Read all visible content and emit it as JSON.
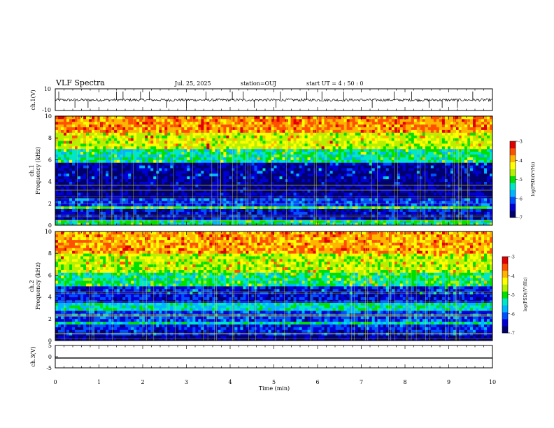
{
  "header": {
    "title": "VLF Spectra",
    "date": "Jul. 25, 2025",
    "station": "station=OUJ",
    "start_ut": "start UT =  4 : 50 : 0"
  },
  "colors": {
    "colormap": [
      "#00006e",
      "#0000d4",
      "#0050ff",
      "#00b4ff",
      "#00e6c8",
      "#00e000",
      "#b4f000",
      "#ffff00",
      "#ffb400",
      "#ff5000",
      "#e00000"
    ],
    "trace": "#000000",
    "axis": "#000000"
  },
  "chart_data": [
    {
      "type": "line",
      "panel": "ch1-waveform",
      "ylabel": "ch.1(V)",
      "ylim": [
        -10,
        10
      ],
      "yticks": [
        "10",
        "-10"
      ],
      "x": [
        0,
        10
      ],
      "mean_level": -0.3,
      "noise_amplitude": 1.2,
      "spikes_min": [
        0.08,
        0.45,
        0.75,
        1.4,
        1.55,
        1.95,
        2.15,
        2.55,
        3.0,
        3.45,
        4.05,
        4.3,
        4.55,
        5.05,
        5.15,
        5.75,
        6.1,
        6.6,
        7.25,
        7.75,
        8.15,
        8.55,
        8.85,
        9.2,
        9.55
      ]
    },
    {
      "type": "heatmap",
      "panel": "ch1-spectrogram",
      "ylabel_lines": [
        "ch.1",
        "Frequency (kHz)"
      ],
      "ylim": [
        0,
        10
      ],
      "yticks": [
        "0",
        "2",
        "4",
        "6",
        "8",
        "10"
      ],
      "xlim": [
        0,
        10
      ],
      "colorbar": {
        "label": "log(PSD)(V²/Hz)",
        "range": [
          -7,
          -3
        ],
        "ticks": [
          "-3",
          "-4",
          "-5",
          "-6",
          "-7"
        ]
      },
      "bands_khz": [
        {
          "from": 0.0,
          "to": 0.5,
          "log_psd": -5.2
        },
        {
          "from": 0.5,
          "to": 1.4,
          "log_psd": -6.5
        },
        {
          "from": 1.4,
          "to": 1.7,
          "log_psd": -5.1
        },
        {
          "from": 1.7,
          "to": 2.4,
          "log_psd": -6.2
        },
        {
          "from": 2.4,
          "to": 5.8,
          "log_psd": -6.7
        },
        {
          "from": 5.8,
          "to": 7.0,
          "log_psd": -5.3
        },
        {
          "from": 7.0,
          "to": 8.5,
          "log_psd": -4.5
        },
        {
          "from": 8.5,
          "to": 10.0,
          "log_psd": -3.8
        }
      ]
    },
    {
      "type": "heatmap",
      "panel": "ch2-spectrogram",
      "ylabel_lines": [
        "ch.2",
        "Frequency (kHz)"
      ],
      "ylim": [
        0,
        10
      ],
      "yticks": [
        "0",
        "2",
        "4",
        "6",
        "8",
        "10"
      ],
      "xlim": [
        0,
        10
      ],
      "colorbar": {
        "label": "log(PSD)(V²/Hz)",
        "range": [
          -7,
          -3
        ],
        "ticks": [
          "-3",
          "-4",
          "-5",
          "-6",
          "-7"
        ]
      },
      "bands_khz": [
        {
          "from": 0.0,
          "to": 0.5,
          "log_psd": -6.8
        },
        {
          "from": 0.5,
          "to": 1.4,
          "log_psd": -6.3
        },
        {
          "from": 1.4,
          "to": 1.8,
          "log_psd": -5.3
        },
        {
          "from": 1.8,
          "to": 2.8,
          "log_psd": -6.2
        },
        {
          "from": 2.8,
          "to": 3.6,
          "log_psd": -5.4
        },
        {
          "from": 3.6,
          "to": 5.0,
          "log_psd": -6.4
        },
        {
          "from": 5.0,
          "to": 6.2,
          "log_psd": -5.2
        },
        {
          "from": 6.2,
          "to": 8.0,
          "log_psd": -4.6
        },
        {
          "from": 8.0,
          "to": 10.0,
          "log_psd": -3.9
        }
      ]
    },
    {
      "type": "line",
      "panel": "ch3-waveform",
      "ylabel": "ch.3(V)",
      "ylim": [
        -5,
        5
      ],
      "yticks": [
        "5",
        "0",
        "-5"
      ],
      "x": [
        0,
        10
      ],
      "y": [
        -0.6,
        -0.6
      ],
      "xlabel": "Time (min)",
      "xticks": [
        "0",
        "1",
        "2",
        "3",
        "4",
        "5",
        "6",
        "7",
        "8",
        "9",
        "10"
      ]
    }
  ]
}
